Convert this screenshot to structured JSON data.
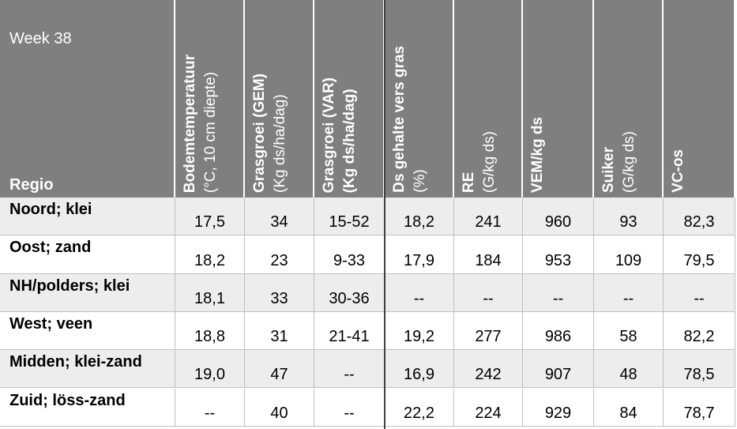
{
  "header": {
    "week": "Week 38",
    "regio": "Regio",
    "columns": [
      {
        "title": "Bodemtemperatuur",
        "subtitle": "(°C, 10 cm diepte)"
      },
      {
        "title": "Grasgroei (GEM)",
        "subtitle": "(Kg ds/ha/dag)"
      },
      {
        "title": "Grasgroei (VAR)",
        "subtitle": "(Kg ds/ha/dag)",
        "subtitle_bold": true
      },
      {
        "title": "Ds gehalte vers gras",
        "subtitle": "(%)"
      },
      {
        "title": "RE",
        "subtitle": "(G/kg ds)"
      },
      {
        "title": "VEM/kg ds"
      },
      {
        "title": "Suiker",
        "subtitle": "(G/kg ds)"
      },
      {
        "title": "VC-os"
      }
    ]
  },
  "table": {
    "rows": [
      {
        "region": "Noord; klei",
        "values": [
          "17,5",
          "34",
          "15-52",
          "18,2",
          "241",
          "960",
          "93",
          "82,3"
        ]
      },
      {
        "region": "Oost; zand",
        "values": [
          "18,2",
          "23",
          "9-33",
          "17,9",
          "184",
          "953",
          "109",
          "79,5"
        ]
      },
      {
        "region": "NH/polders; klei",
        "values": [
          "18,1",
          "33",
          "30-36",
          "--",
          "--",
          "--",
          "--",
          "--"
        ]
      },
      {
        "region": "West; veen",
        "values": [
          "18,8",
          "31",
          "21-41",
          "19,2",
          "277",
          "986",
          "58",
          "82,2"
        ]
      },
      {
        "region": "Midden; klei-zand",
        "values": [
          "19,0",
          "47",
          "--",
          "16,9",
          "242",
          "907",
          "48",
          "78,5"
        ]
      },
      {
        "region": "Zuid; löss-zand",
        "values": [
          "--",
          "40",
          "--",
          "22,2",
          "224",
          "929",
          "84",
          "78,7"
        ]
      }
    ]
  }
}
